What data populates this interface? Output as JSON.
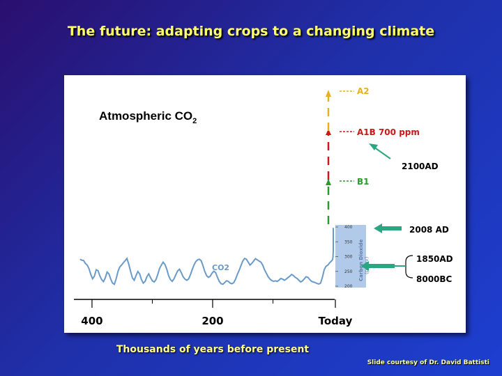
{
  "slide": {
    "title": "The future: adapting crops to a changing climate",
    "footer_label": "Thousands of years before present",
    "credit": "Slide courtesy of Dr. David Battisti"
  },
  "chart_data": {
    "type": "line",
    "title_main": "Atmospheric CO",
    "title_sub": "2",
    "series_label": "CO2",
    "x_ticks": [
      "400",
      "200",
      "Today"
    ],
    "y_axis": {
      "label_line1": "Carbon Dioxide",
      "label_line2": "(ppmv)",
      "ticks": [
        "400",
        "350",
        "300",
        "250",
        "200"
      ]
    },
    "series": [
      {
        "values": [
          [
            420,
            282
          ],
          [
            417,
            279
          ],
          [
            414,
            278
          ],
          [
            411,
            268
          ],
          [
            408,
            262
          ],
          [
            405,
            250
          ],
          [
            402,
            230
          ],
          [
            399,
            215
          ],
          [
            396,
            224
          ],
          [
            393,
            246
          ],
          [
            390,
            243
          ],
          [
            387,
            225
          ],
          [
            384,
            212
          ],
          [
            381,
            205
          ],
          [
            378,
            218
          ],
          [
            375,
            238
          ],
          [
            372,
            232
          ],
          [
            369,
            214
          ],
          [
            366,
            200
          ],
          [
            363,
            196
          ],
          [
            360,
            215
          ],
          [
            357,
            240
          ],
          [
            354,
            255
          ],
          [
            351,
            262
          ],
          [
            348,
            270
          ],
          [
            345,
            277
          ],
          [
            342,
            285
          ],
          [
            339,
            265
          ],
          [
            336,
            240
          ],
          [
            333,
            218
          ],
          [
            330,
            210
          ],
          [
            327,
            226
          ],
          [
            324,
            240
          ],
          [
            321,
            232
          ],
          [
            318,
            212
          ],
          [
            315,
            200
          ],
          [
            312,
            206
          ],
          [
            309,
            222
          ],
          [
            306,
            232
          ],
          [
            303,
            219
          ],
          [
            300,
            208
          ],
          [
            297,
            204
          ],
          [
            294,
            212
          ],
          [
            291,
            230
          ],
          [
            288,
            250
          ],
          [
            285,
            262
          ],
          [
            282,
            272
          ],
          [
            279,
            264
          ],
          [
            276,
            248
          ],
          [
            273,
            226
          ],
          [
            270,
            212
          ],
          [
            267,
            206
          ],
          [
            264,
            215
          ],
          [
            261,
            229
          ],
          [
            258,
            242
          ],
          [
            255,
            248
          ],
          [
            252,
            236
          ],
          [
            249,
            222
          ],
          [
            246,
            214
          ],
          [
            243,
            210
          ],
          [
            240,
            214
          ],
          [
            237,
            228
          ],
          [
            234,
            246
          ],
          [
            231,
            262
          ],
          [
            228,
            274
          ],
          [
            225,
            280
          ],
          [
            222,
            282
          ],
          [
            219,
            277
          ],
          [
            216,
            260
          ],
          [
            213,
            240
          ],
          [
            210,
            226
          ],
          [
            207,
            220
          ],
          [
            204,
            224
          ],
          [
            201,
            234
          ],
          [
            198,
            241
          ],
          [
            195,
            236
          ],
          [
            192,
            220
          ],
          [
            189,
            206
          ],
          [
            186,
            198
          ],
          [
            183,
            196
          ],
          [
            180,
            202
          ],
          [
            177,
            208
          ],
          [
            174,
            206
          ],
          [
            171,
            200
          ],
          [
            168,
            198
          ],
          [
            165,
            202
          ],
          [
            162,
            214
          ],
          [
            159,
            230
          ],
          [
            156,
            244
          ],
          [
            153,
            260
          ],
          [
            150,
            276
          ],
          [
            147,
            285
          ],
          [
            144,
            282
          ],
          [
            141,
            272
          ],
          [
            138,
            262
          ],
          [
            135,
            268
          ],
          [
            132,
            276
          ],
          [
            129,
            284
          ],
          [
            126,
            280
          ],
          [
            123,
            276
          ],
          [
            120,
            272
          ],
          [
            117,
            262
          ],
          [
            114,
            246
          ],
          [
            111,
            234
          ],
          [
            108,
            222
          ],
          [
            105,
            214
          ],
          [
            102,
            209
          ],
          [
            99,
            206
          ],
          [
            96,
            208
          ],
          [
            93,
            206
          ],
          [
            90,
            210
          ],
          [
            87,
            216
          ],
          [
            84,
            214
          ],
          [
            81,
            210
          ],
          [
            78,
            214
          ],
          [
            75,
            219
          ],
          [
            72,
            224
          ],
          [
            69,
            230
          ],
          [
            66,
            226
          ],
          [
            63,
            220
          ],
          [
            60,
            216
          ],
          [
            57,
            210
          ],
          [
            54,
            204
          ],
          [
            51,
            208
          ],
          [
            48,
            215
          ],
          [
            45,
            222
          ],
          [
            42,
            220
          ],
          [
            39,
            212
          ],
          [
            36,
            206
          ],
          [
            33,
            204
          ],
          [
            30,
            202
          ],
          [
            27,
            199
          ],
          [
            24,
            197
          ],
          [
            21,
            200
          ],
          [
            18,
            220
          ],
          [
            15,
            246
          ],
          [
            12,
            258
          ],
          [
            9,
            262
          ],
          [
            6,
            270
          ],
          [
            3,
            276
          ],
          [
            1.5,
            280
          ],
          [
            1,
            282
          ],
          [
            0.5,
            290
          ],
          [
            0,
            310
          ],
          [
            0,
            390
          ]
        ]
      }
    ],
    "scenarios": [
      {
        "name": "A2",
        "color": "#e8b020"
      },
      {
        "name": "A1B 700 ppm",
        "color": "#cc1818"
      },
      {
        "name": "B1",
        "color": "#2a9a2a"
      }
    ],
    "annotations": [
      {
        "text": "2100AD"
      },
      {
        "text": "2008 AD"
      },
      {
        "text": "1850AD"
      },
      {
        "text": "8000BC"
      }
    ],
    "xlim": [
      430,
      0
    ],
    "ylim": [
      180,
      420
    ],
    "colors": {
      "line": "#6a9ac8",
      "band": "#a8c4e8",
      "arrow": "#2aa680"
    }
  }
}
